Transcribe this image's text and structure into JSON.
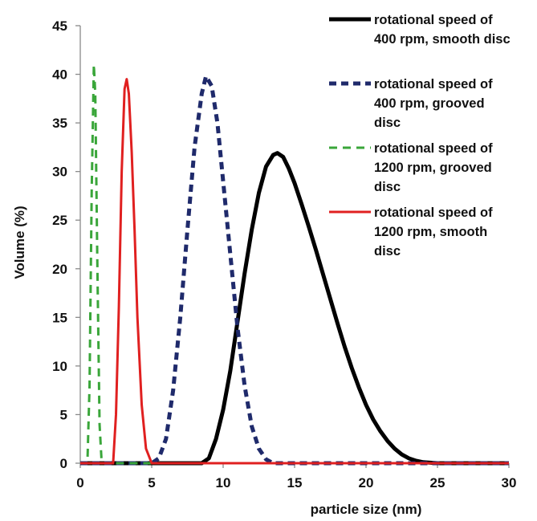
{
  "chart_data": {
    "type": "line",
    "title": "",
    "xlabel": "particle size (nm)",
    "ylabel": "Volume (%)",
    "xlim": [
      0,
      30
    ],
    "ylim": [
      0,
      45
    ],
    "xticks": [
      0,
      5,
      10,
      15,
      20,
      25,
      30
    ],
    "yticks": [
      0,
      5,
      10,
      15,
      20,
      25,
      30,
      35,
      40,
      45
    ],
    "grid": false,
    "legend_position": "top-right",
    "series": [
      {
        "name": "rotational speed of 400 rpm, smooth disc",
        "legend_lines": [
          "rotational speed of",
          "400 rpm, smooth disc"
        ],
        "color": "#000000",
        "style": "solid",
        "x": [
          0,
          8.5,
          9.0,
          9.5,
          10.0,
          10.5,
          11.0,
          11.5,
          12.0,
          12.5,
          13.0,
          13.5,
          13.8,
          14.2,
          14.6,
          15.0,
          15.5,
          16.0,
          16.5,
          17.0,
          17.5,
          18.0,
          18.5,
          19.0,
          19.5,
          20.0,
          20.5,
          21.0,
          21.5,
          22.0,
          22.5,
          23.0,
          23.5,
          24.0,
          24.5,
          25.0,
          25.5,
          26.0,
          30
        ],
        "y": [
          0,
          0,
          0.5,
          2.5,
          5.5,
          9.5,
          14.5,
          19.5,
          24.0,
          27.8,
          30.5,
          31.7,
          31.9,
          31.5,
          30.3,
          28.8,
          26.6,
          24.3,
          21.9,
          19.4,
          16.9,
          14.4,
          12.0,
          9.8,
          7.8,
          6.0,
          4.5,
          3.3,
          2.3,
          1.5,
          0.9,
          0.5,
          0.25,
          0.1,
          0.05,
          0,
          0,
          0,
          0
        ]
      },
      {
        "name": "rotational speed of 400 rpm, grooved disc",
        "legend_lines": [
          "rotational speed of",
          "400 rpm, grooved",
          "disc"
        ],
        "color": "#1f2a6b",
        "style": "dashed",
        "x": [
          0,
          5.0,
          5.5,
          6.0,
          6.5,
          7.0,
          7.5,
          8.0,
          8.5,
          8.8,
          9.2,
          9.6,
          10.0,
          10.5,
          11.0,
          11.5,
          12.0,
          12.5,
          13.0,
          13.5,
          14.0,
          30
        ],
        "y": [
          0,
          0,
          0.5,
          2.5,
          7.5,
          15.0,
          24.0,
          32.5,
          38.0,
          39.8,
          38.8,
          35.0,
          29.0,
          21.5,
          14.0,
          8.0,
          3.8,
          1.5,
          0.4,
          0,
          0,
          0
        ]
      },
      {
        "name": "rotational speed of 1200 rpm, grooved disc",
        "legend_lines": [
          "rotational speed of",
          "1200 rpm, grooved",
          "disc"
        ],
        "color": "#3aa63a",
        "style": "dashed",
        "x": [
          0,
          0.5,
          0.65,
          0.8,
          0.95,
          1.05,
          1.2,
          1.35,
          1.5,
          30
        ],
        "y": [
          0,
          0,
          8.0,
          28.0,
          41.0,
          38.0,
          20.0,
          4.0,
          0,
          0
        ]
      },
      {
        "name": "rotational speed of 1200 rpm, smooth disc",
        "legend_lines": [
          "rotational speed of",
          "1200 rpm, smooth",
          "disc"
        ],
        "color": "#e02020",
        "style": "solid",
        "x": [
          0,
          2.3,
          2.5,
          2.7,
          2.9,
          3.1,
          3.25,
          3.4,
          3.6,
          3.8,
          4.0,
          4.3,
          4.6,
          5.0,
          30
        ],
        "y": [
          0,
          0,
          5.0,
          16.0,
          30.0,
          38.5,
          39.5,
          38.0,
          32.0,
          24.0,
          15.0,
          6.0,
          1.5,
          0,
          0
        ]
      }
    ]
  }
}
